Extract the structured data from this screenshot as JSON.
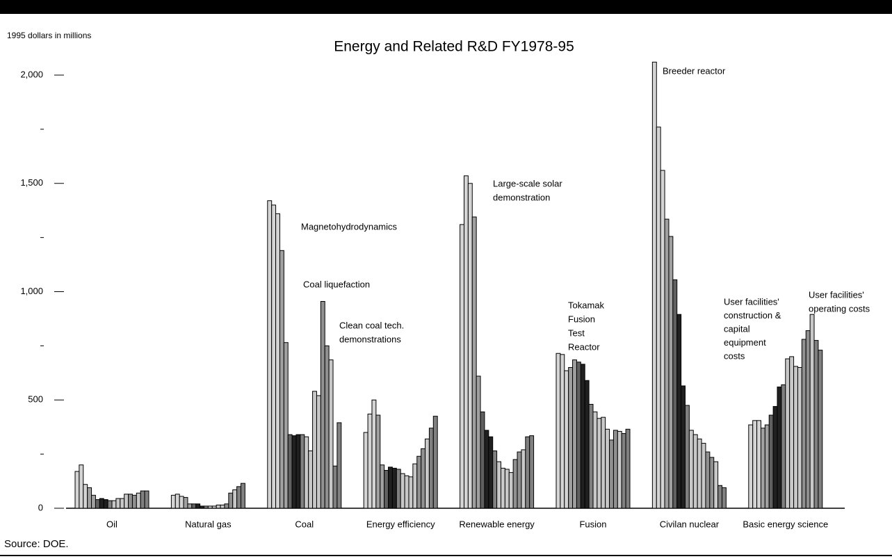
{
  "chart_data": {
    "type": "bar",
    "title": "Energy and Related R&D FY1978-95",
    "y_axis_label": "1995 dollars in millions",
    "source": "Source:  DOE.",
    "categories": [
      "Oil",
      "Natural gas",
      "Coal",
      "Energy efficiency",
      "Renewable energy",
      "Fusion",
      "Civilan nuclear",
      "Basic energy science"
    ],
    "values": [
      [
        170,
        200,
        110,
        95,
        60,
        40,
        45,
        40,
        35,
        35,
        45,
        45,
        65,
        65,
        60,
        70,
        80,
        80
      ],
      [
        60,
        65,
        55,
        50,
        20,
        20,
        20,
        10,
        10,
        10,
        10,
        15,
        15,
        20,
        70,
        85,
        100,
        115
      ],
      [
        1420,
        1400,
        1360,
        1190,
        765,
        340,
        335,
        340,
        340,
        330,
        265,
        540,
        520,
        955,
        750,
        685,
        195,
        395
      ],
      [
        350,
        435,
        500,
        430,
        200,
        175,
        190,
        185,
        180,
        160,
        150,
        145,
        205,
        240,
        275,
        320,
        370,
        425
      ],
      [
        1310,
        1535,
        1500,
        1345,
        610,
        445,
        360,
        330,
        265,
        215,
        185,
        180,
        165,
        225,
        260,
        270,
        330,
        335
      ],
      [
        715,
        710,
        635,
        650,
        685,
        675,
        665,
        590,
        480,
        445,
        415,
        420,
        365,
        315,
        360,
        355,
        345,
        365
      ],
      [
        2060,
        1760,
        1560,
        1335,
        1255,
        1055,
        895,
        565,
        475,
        360,
        340,
        320,
        300,
        260,
        235,
        215,
        105,
        95
      ],
      [
        385,
        405,
        405,
        370,
        385,
        430,
        470,
        560,
        570,
        690,
        700,
        655,
        650,
        780,
        820,
        895,
        775,
        730
      ]
    ],
    "bar_colors": [
      "#d4d4d4",
      "#d4d4d4",
      "#d4d4d4",
      "#a0a0a0",
      "#a0a0a0",
      "#606060",
      "#202020",
      "#202020",
      "#808080",
      "#c8c8c8",
      "#c8c8c8",
      "#c8c8c8",
      "#c8c8c8",
      "#909090",
      "#909090",
      "#c8c8c8",
      "#808080",
      "#808080"
    ],
    "ylim": [
      0,
      2000
    ],
    "yticks": [
      0,
      500,
      {
        "value": 1000,
        "label": "1,000"
      },
      {
        "value": 1500,
        "label": "1,500"
      },
      {
        "value": 2000,
        "label": "2,000"
      }
    ],
    "minor_yticks": [
      250,
      750,
      1250,
      1750
    ],
    "annotations": [
      [
        "Magnetohydrodynamics"
      ],
      [
        "Coal liquefaction"
      ],
      [
        "Clean coal tech.",
        "demonstrations"
      ],
      [
        "Large-scale solar",
        "demonstration"
      ],
      [
        "Tokamak",
        "Fusion",
        "Test",
        "Reactor"
      ],
      [
        "Breeder reactor"
      ],
      [
        "User facilities'",
        "construction &",
        "capital",
        "equipment",
        "costs"
      ],
      [
        "User facilities'",
        "operating costs"
      ]
    ]
  }
}
